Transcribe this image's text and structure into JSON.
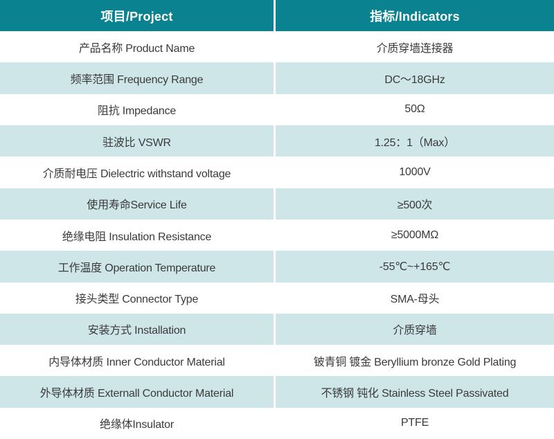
{
  "theme": {
    "header_bg": "#0A8290",
    "alt_row_bg": "#CFE6E9",
    "row_bg": "#FFFFFF",
    "header_text_color": "#FFFFFF",
    "body_text_color": "#3A3A3A"
  },
  "table": {
    "headers": [
      {
        "label": "项目/Project"
      },
      {
        "label": "指标/Indicators"
      }
    ],
    "rows": [
      {
        "project": "产品名称 Product Name",
        "indicator": "介质穿墙连接器"
      },
      {
        "project": "频率范围 Frequency Range",
        "indicator": "DC～18GHz"
      },
      {
        "project": "阻抗 Impedance",
        "indicator": "50Ω"
      },
      {
        "project": "驻波比 VSWR",
        "indicator": "1.25：1（Max）"
      },
      {
        "project": "介质耐电压 Dielectric withstand voltage",
        "indicator": "1000V"
      },
      {
        "project": "使用寿命Service Life",
        "indicator": "≥500次"
      },
      {
        "project": "绝缘电阻 Insulation Resistance",
        "indicator": "≥5000MΩ"
      },
      {
        "project": "工作温度 Operation Temperature",
        "indicator": "-55℃~+165℃"
      },
      {
        "project": "接头类型  Connector Type",
        "indicator": "SMA-母头"
      },
      {
        "project": "安装方式 Installation",
        "indicator": "介质穿墙"
      },
      {
        "project": "内导体材质 Inner Conductor Material",
        "indicator": "铍青铜 镀金 Beryllium bronze Gold Plating"
      },
      {
        "project": "外导体材质 Externall Conductor Material",
        "indicator": "不锈钢 钝化 Stainless Steel Passivated"
      },
      {
        "project": "绝缘体Insulator",
        "indicator": "PTFE"
      }
    ]
  }
}
